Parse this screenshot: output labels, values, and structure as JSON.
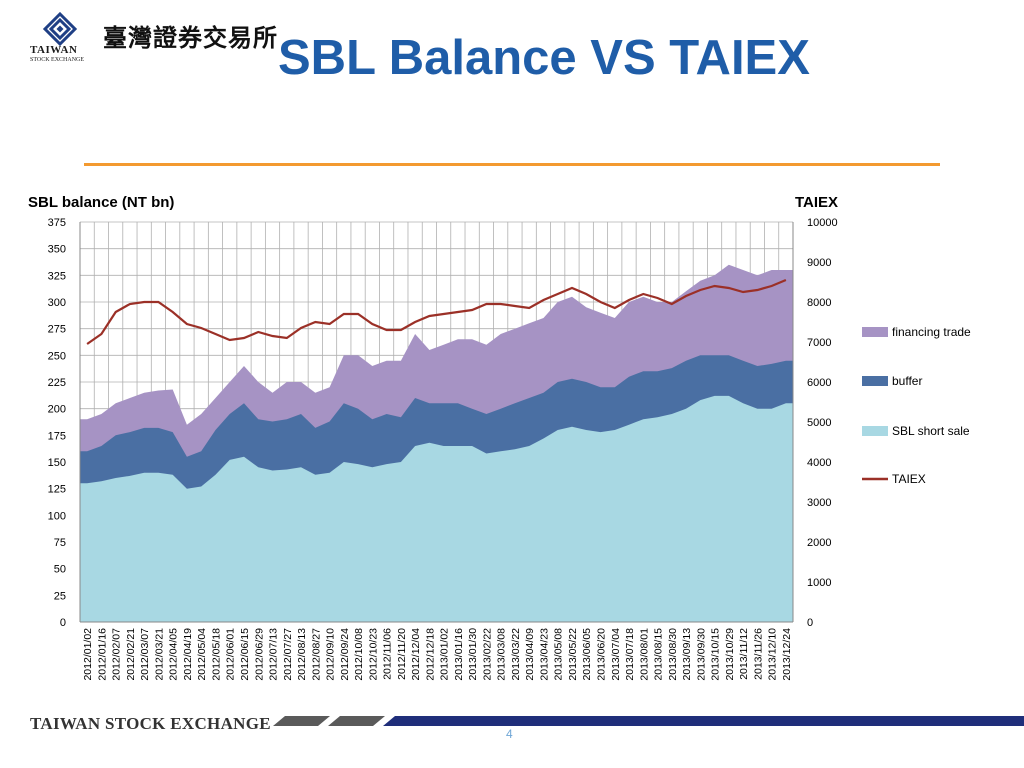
{
  "header": {
    "logo_en": "TAIWAN",
    "logo_en_sub": "STOCK EXCHANGE",
    "logo_cn": "臺灣證券交易所",
    "title": "SBL Balance VS TAIEX"
  },
  "footer": {
    "text": "TAIWAN STOCK EXCHANGE",
    "page": "4"
  },
  "colors": {
    "title": "#1f5da8",
    "rule": "#f39a30",
    "sbl_short_sale": "#a8d8e3",
    "buffer": "#4a6fa3",
    "financing_trade": "#a693c4",
    "taiex": "#9b3027"
  },
  "chart_data": {
    "type": "area",
    "ylabel": "SBL balance (NT bn)",
    "y2label": "TAIEX",
    "ylim": [
      0,
      375
    ],
    "y2lim": [
      0,
      10000
    ],
    "yticks": [
      "0",
      "25",
      "50",
      "75",
      "100",
      "125",
      "150",
      "175",
      "200",
      "225",
      "250",
      "275",
      "300",
      "325",
      "350",
      "375"
    ],
    "y2ticks": [
      "0",
      "1000",
      "2000",
      "3000",
      "4000",
      "5000",
      "6000",
      "7000",
      "8000",
      "9000",
      "10000"
    ],
    "grid": true,
    "legend": "right",
    "x": [
      "2012/01/02",
      "2012/01/16",
      "2012/02/07",
      "2012/02/21",
      "2012/03/07",
      "2012/03/21",
      "2012/04/05",
      "2012/04/19",
      "2012/05/04",
      "2012/05/18",
      "2012/06/01",
      "2012/06/15",
      "2012/06/29",
      "2012/07/13",
      "2012/07/27",
      "2012/08/13",
      "2012/08/27",
      "2012/09/10",
      "2012/09/24",
      "2012/10/08",
      "2012/10/23",
      "2012/11/06",
      "2012/11/20",
      "2012/12/04",
      "2012/12/18",
      "2013/01/02",
      "2013/01/16",
      "2013/01/30",
      "2013/02/22",
      "2013/03/08",
      "2013/03/22",
      "2013/04/09",
      "2013/04/23",
      "2013/05/08",
      "2013/05/22",
      "2013/06/05",
      "2013/06/20",
      "2013/07/04",
      "2013/07/18",
      "2013/08/01",
      "2013/08/15",
      "2013/08/30",
      "2013/09/13",
      "2013/09/30",
      "2013/10/15",
      "2013/10/29",
      "2013/11/12",
      "2013/11/26",
      "2013/12/10",
      "2013/12/24"
    ],
    "series": [
      {
        "name": "financing trade",
        "stack_top": [
          190,
          195,
          205,
          210,
          215,
          217,
          218,
          185,
          195,
          210,
          225,
          240,
          225,
          215,
          225,
          225,
          215,
          220,
          250,
          250,
          240,
          245,
          245,
          270,
          255,
          260,
          265,
          265,
          260,
          270,
          275,
          280,
          285,
          300,
          305,
          295,
          290,
          285,
          300,
          305,
          300,
          300,
          310,
          320,
          325,
          335,
          330,
          325,
          330,
          330
        ]
      },
      {
        "name": "buffer",
        "stack_top": [
          160,
          165,
          175,
          178,
          182,
          182,
          178,
          155,
          160,
          180,
          195,
          205,
          190,
          188,
          190,
          195,
          182,
          188,
          205,
          200,
          190,
          195,
          192,
          210,
          205,
          205,
          205,
          200,
          195,
          200,
          205,
          210,
          215,
          225,
          228,
          225,
          220,
          220,
          230,
          235,
          235,
          238,
          245,
          250,
          250,
          250,
          245,
          240,
          242,
          245
        ]
      },
      {
        "name": "SBL short sale",
        "values": [
          130,
          132,
          135,
          137,
          140,
          140,
          138,
          125,
          127,
          138,
          152,
          155,
          145,
          142,
          143,
          145,
          138,
          140,
          150,
          148,
          145,
          148,
          150,
          165,
          168,
          165,
          165,
          165,
          158,
          160,
          162,
          165,
          172,
          180,
          183,
          180,
          178,
          180,
          185,
          190,
          192,
          195,
          200,
          208,
          212,
          212,
          205,
          200,
          200,
          205
        ]
      },
      {
        "name": "TAIEX",
        "values": [
          6950,
          7200,
          7750,
          7950,
          8000,
          8000,
          7750,
          7450,
          7350,
          7200,
          7050,
          7100,
          7250,
          7150,
          7100,
          7350,
          7500,
          7450,
          7700,
          7700,
          7450,
          7300,
          7300,
          7500,
          7650,
          7700,
          7750,
          7800,
          7950,
          7950,
          7900,
          7850,
          8050,
          8200,
          8350,
          8200,
          8000,
          7850,
          8050,
          8200,
          8100,
          7950,
          8150,
          8300,
          8400,
          8350,
          8250,
          8300,
          8400,
          8550
        ]
      }
    ]
  },
  "legend": [
    {
      "label": "financing trade"
    },
    {
      "label": "buffer"
    },
    {
      "label": "SBL short sale"
    },
    {
      "label": "TAIEX"
    }
  ]
}
